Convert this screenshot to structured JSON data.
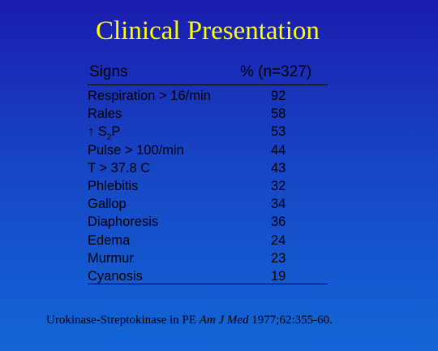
{
  "title": "Clinical Presentation",
  "table": {
    "header_sign": "Signs",
    "header_pct": "% (n=327)",
    "rows": [
      {
        "sign": "Respiration > 16/min",
        "value": "92"
      },
      {
        "sign": "Rales",
        "value": "58"
      },
      {
        "sign_prefix": "↑ S",
        "sign_sub": "2",
        "sign_suffix": "P",
        "value": "53"
      },
      {
        "sign": "Pulse > 100/min",
        "value": "44"
      },
      {
        "sign": "T > 37.8 C",
        "value": "43"
      },
      {
        "sign": "Phlebitis",
        "value": "32"
      },
      {
        "sign": "Gallop",
        "value": "34"
      },
      {
        "sign": "Diaphoresis",
        "value": "36"
      },
      {
        "sign": "Edema",
        "value": "24"
      },
      {
        "sign": "Murmur",
        "value": "23"
      },
      {
        "sign": "Cyanosis",
        "value": "19"
      }
    ]
  },
  "citation": {
    "prefix": "Urokinase-Streptokinase in PE ",
    "journal": "Am J Med",
    "suffix": " 1977;62:355-60."
  },
  "colors": {
    "background_top": "#1a1cae",
    "background_bottom": "#1266d6",
    "title": "#ffff00",
    "text": "#000000"
  }
}
